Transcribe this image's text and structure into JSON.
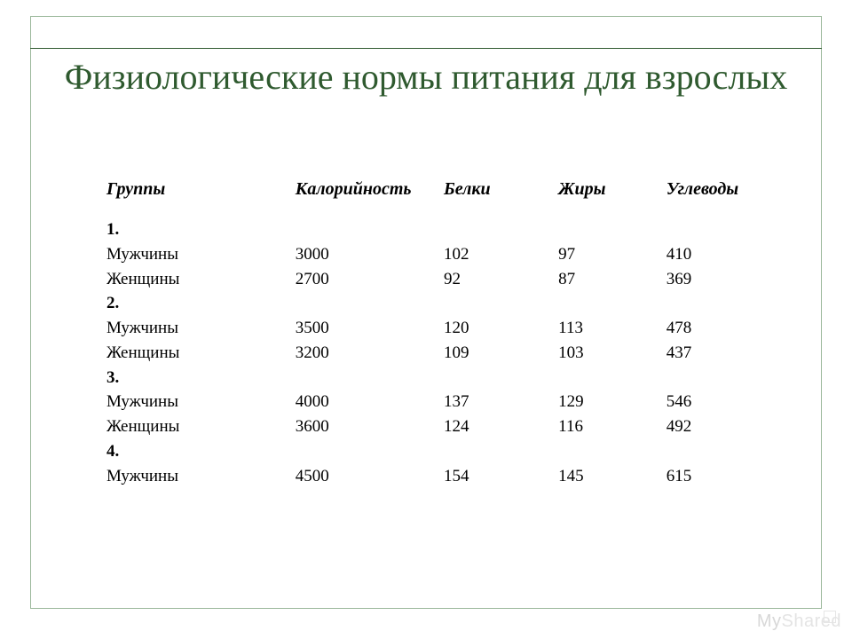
{
  "title": "Физиологические нормы питания для взрослых",
  "colors": {
    "title": "#2f5a2f",
    "frame_border": "#9bb89b",
    "rule": "#2f5a2f",
    "text": "#000000",
    "background": "#ffffff",
    "watermark": "#dddddd"
  },
  "typography": {
    "title_fontsize_pt": 30,
    "header_fontsize_pt": 15,
    "body_fontsize_pt": 14,
    "title_font": "Georgia, serif",
    "body_font": "Times New Roman, serif"
  },
  "table": {
    "columns": [
      "Группы",
      "Калорийность",
      "Белки",
      "Жиры",
      "Углеводы"
    ],
    "col_widths_pct": [
      28,
      22,
      17,
      16,
      17
    ],
    "groups": [
      {
        "label": "1.",
        "rows": [
          {
            "label": "Мужчины",
            "values": [
              "3000",
              "102",
              "97",
              "410"
            ]
          },
          {
            "label": "Женщины",
            "values": [
              "2700",
              "92",
              "87",
              "369"
            ]
          }
        ]
      },
      {
        "label": "2.",
        "rows": [
          {
            "label": "Мужчины",
            "values": [
              "3500",
              "120",
              "113",
              "478"
            ]
          },
          {
            "label": "Женщины",
            "values": [
              "3200",
              "109",
              "103",
              "437"
            ]
          }
        ]
      },
      {
        "label": "3.",
        "rows": [
          {
            "label": "Мужчины",
            "values": [
              "4000",
              "137",
              "129",
              "546"
            ]
          },
          {
            "label": "Женщины",
            "values": [
              "3600",
              "124",
              "116",
              "492"
            ]
          }
        ]
      },
      {
        "label": "4.",
        "rows": [
          {
            "label": "Мужчины",
            "values": [
              "4500",
              "154",
              "145",
              "615"
            ]
          }
        ]
      }
    ]
  },
  "watermark": {
    "part1": "My",
    "part2": "Shared"
  }
}
